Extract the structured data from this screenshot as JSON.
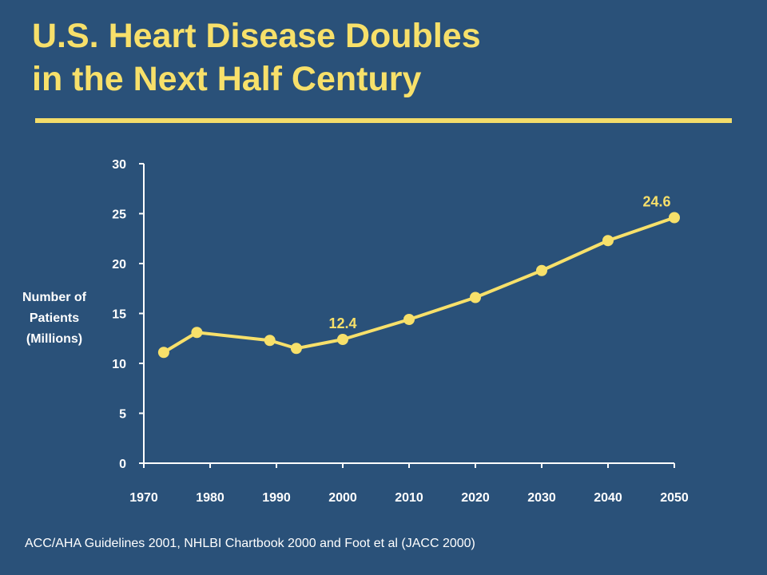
{
  "title": {
    "line1": "U.S. Heart Disease Doubles",
    "line2": "in the Next Half Century"
  },
  "source": "ACC/AHA Guidelines 2001, NHLBI Chartbook 2000 and Foot et al (JACC 2000)",
  "colors": {
    "background": "#2a5179",
    "accent": "#f7e06a",
    "text": "#ffffff"
  },
  "chart_data": {
    "type": "line",
    "title": "",
    "xlabel": "",
    "ylabel": [
      "Number of",
      "Patients",
      "(Millions)"
    ],
    "xlim": [
      1970,
      2050
    ],
    "ylim": [
      0,
      30
    ],
    "x_ticks": [
      1970,
      1980,
      1990,
      2000,
      2010,
      2020,
      2030,
      2040,
      2050
    ],
    "y_ticks": [
      0,
      5,
      10,
      15,
      20,
      25,
      30
    ],
    "grid": false,
    "legend": "none",
    "series": [
      {
        "x": [
          1973,
          1978,
          1989,
          1993,
          2000,
          2010,
          2020,
          2030,
          2040,
          2050
        ],
        "y": [
          11.1,
          13.1,
          12.3,
          11.5,
          12.4,
          14.4,
          16.6,
          19.3,
          22.3,
          24.6
        ]
      }
    ],
    "annotations": [
      {
        "x": 2000,
        "y": 12.4,
        "text": "12.4"
      },
      {
        "x": 2050,
        "y": 24.6,
        "text": "24.6"
      }
    ]
  }
}
